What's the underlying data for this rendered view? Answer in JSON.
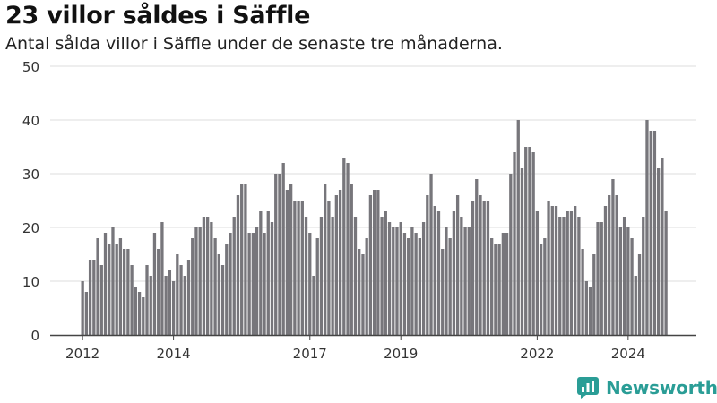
{
  "header": {
    "title": "23 villor såldes i Säffle",
    "subtitle": "Antal sålda villor i Säffle under de senaste tre månaderna."
  },
  "brand": {
    "name": "Newsworthy",
    "icon": "newsworthy-logo-icon",
    "color": "#2a9d96"
  },
  "colors": {
    "bar": "#77767b",
    "highlight": "#2a9d96",
    "grid": "#dddddd",
    "axis": "#444444"
  },
  "chart_data": {
    "type": "bar",
    "title": "23 villor såldes i Säffle",
    "subtitle": "Antal sålda villor i Säffle under de senaste tre månaderna.",
    "xlabel": "",
    "ylabel": "",
    "ylim": [
      0,
      50
    ],
    "y_ticks": [
      0,
      10,
      20,
      30,
      40,
      50
    ],
    "x_ticks": [
      {
        "label": "2012",
        "month": "2012-01"
      },
      {
        "label": "2014",
        "month": "2014-01"
      },
      {
        "label": "2017",
        "month": "2017-01"
      },
      {
        "label": "2019",
        "month": "2019-01"
      },
      {
        "label": "2022",
        "month": "2022-01"
      },
      {
        "label": "2024",
        "month": "2024-01"
      }
    ],
    "grid": true,
    "legend": "none",
    "start_month": "2012-01",
    "values": [
      10,
      8,
      14,
      14,
      18,
      13,
      19,
      17,
      20,
      17,
      18,
      16,
      16,
      13,
      9,
      8,
      7,
      13,
      11,
      19,
      16,
      21,
      11,
      12,
      10,
      15,
      13,
      11,
      14,
      18,
      20,
      20,
      22,
      22,
      21,
      18,
      15,
      13,
      17,
      19,
      22,
      26,
      28,
      28,
      19,
      19,
      20,
      23,
      19,
      23,
      21,
      30,
      30,
      32,
      27,
      28,
      25,
      25,
      25,
      22,
      19,
      11,
      18,
      22,
      28,
      25,
      22,
      26,
      27,
      33,
      32,
      28,
      22,
      16,
      15,
      18,
      26,
      27,
      27,
      22,
      23,
      21,
      20,
      20,
      21,
      19,
      18,
      20,
      19,
      18,
      21,
      26,
      30,
      24,
      23,
      16,
      20,
      18,
      23,
      26,
      22,
      20,
      20,
      25,
      29,
      26,
      25,
      25,
      18,
      17,
      17,
      19,
      19,
      30,
      34,
      40,
      31,
      35,
      35,
      34,
      23,
      17,
      18,
      25,
      24,
      24,
      22,
      22,
      23,
      23,
      24,
      22,
      16,
      10,
      9,
      15,
      21,
      21,
      24,
      26,
      29,
      26,
      20,
      22,
      20,
      18,
      11,
      15,
      22,
      40,
      38,
      38,
      31,
      33,
      23
    ],
    "highlight": {
      "index": 155,
      "label": "23"
    }
  }
}
